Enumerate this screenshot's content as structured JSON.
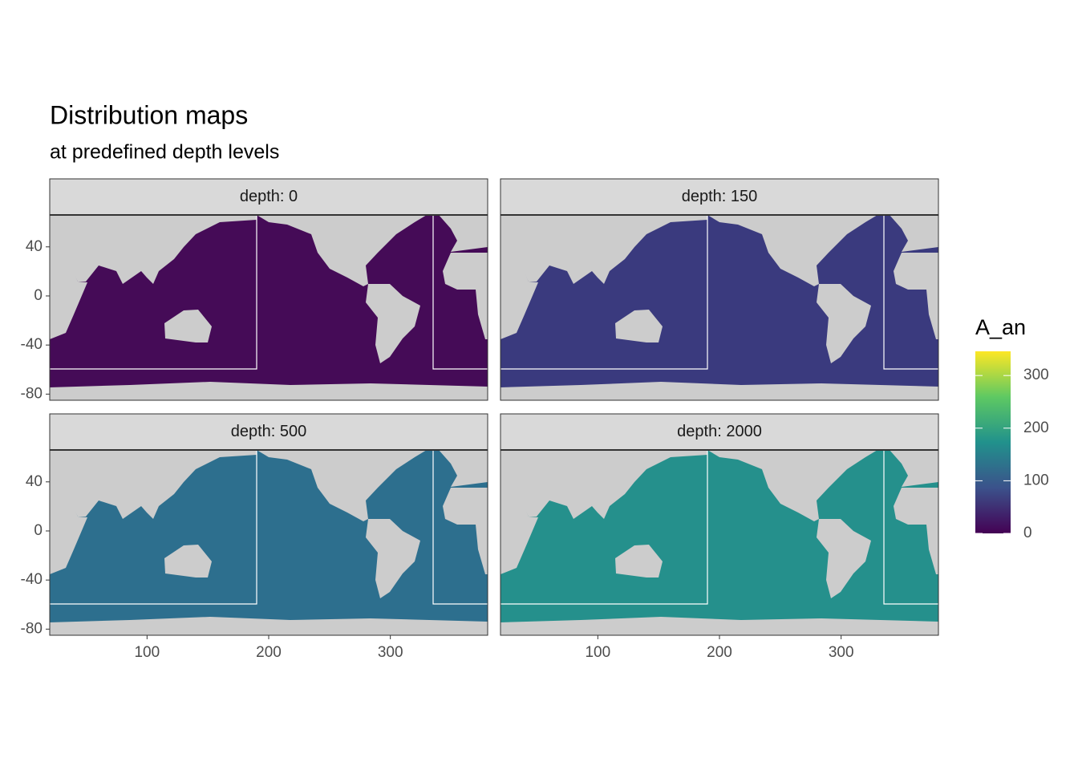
{
  "chart_data": {
    "type": "map",
    "title": "Distribution maps",
    "subtitle": "at predefined depth levels",
    "facets": [
      {
        "label": "depth: 0",
        "fill": "#450b57"
      },
      {
        "label": "depth: 150",
        "fill": "#3a3a7e"
      },
      {
        "label": "depth: 500",
        "fill": "#2d6f8e"
      },
      {
        "label": "depth: 2000",
        "fill": "#25908c"
      }
    ],
    "xlim": [
      20,
      380
    ],
    "ylim": [
      -85,
      66
    ],
    "xticks": [
      100,
      200,
      300
    ],
    "yticks": [
      -80,
      -40,
      0,
      40
    ],
    "legend": {
      "title": "A_an",
      "limits": [
        0,
        346
      ],
      "ticks": [
        0,
        100,
        200,
        300
      ]
    }
  }
}
